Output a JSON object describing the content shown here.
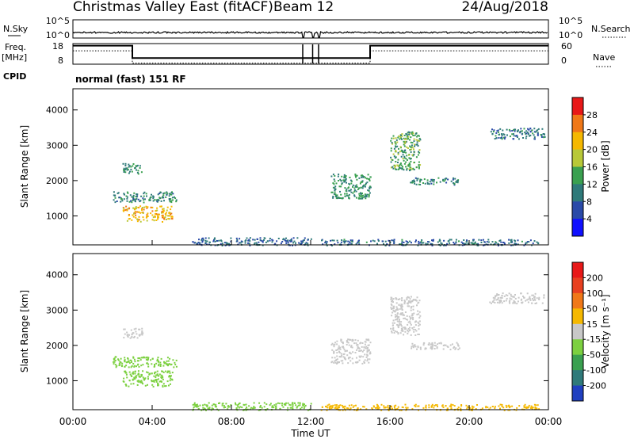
{
  "header": {
    "title": "Christmas Valley East (fitACF)",
    "beam": "Beam 12",
    "date": "24/Aug/2018"
  },
  "aux": {
    "nsky_label": "N.Sky",
    "nsky_ticks": [
      "10^5",
      "10^0"
    ],
    "nsearch_label": "N.Search",
    "nsearch_ticks": [
      "10^5",
      "10^0"
    ],
    "freq_label": "Freq.",
    "freq_unit": "[MHz]",
    "freq_ticks": [
      "18",
      "8"
    ],
    "nave_label": "Nave",
    "nave_ticks": [
      "60",
      "0"
    ],
    "cpid_label": "CPID",
    "cpid_value": "normal (fast) 151 RF"
  },
  "x_axis": {
    "label": "Time UT",
    "ticks": [
      "00:00",
      "04:00",
      "08:00",
      "12:00",
      "16:00",
      "20:00",
      "00:00"
    ]
  },
  "power_panel": {
    "ylabel": "Slant Range [km]",
    "yticks": [
      "1000",
      "2000",
      "3000",
      "4000"
    ],
    "colorbar_label": "Power [dB]",
    "colorbar_ticks": [
      "4",
      "8",
      "12",
      "16",
      "20",
      "24",
      "28"
    ],
    "colors": [
      "#1010ff",
      "#2a4aa8",
      "#2f7a7a",
      "#3aa050",
      "#b8c838",
      "#f5b800",
      "#f07818",
      "#e81818"
    ]
  },
  "velocity_panel": {
    "ylabel": "Slant Range [km]",
    "yticks": [
      "1000",
      "2000",
      "3000",
      "4000"
    ],
    "colorbar_label": "Velocity [m s⁻¹]",
    "colorbar_ticks": [
      "200",
      "100",
      "50",
      "15",
      "-15",
      "-50",
      "-100",
      "-200"
    ],
    "colors": [
      "#2040c0",
      "#2f7a7a",
      "#3aa050",
      "#7cd040",
      "#c8c8c8",
      "#f5b800",
      "#f07818",
      "#e84020",
      "#e81818"
    ]
  },
  "chart_data": {
    "type": "heatmap",
    "x_range_hours": [
      0,
      24
    ],
    "y_range_km": [
      180,
      4600
    ],
    "power_features_db": [
      {
        "t0": 2.5,
        "t1": 5.0,
        "r0": 850,
        "r1": 1300,
        "level": 22
      },
      {
        "t0": 2.0,
        "t1": 5.2,
        "r0": 1400,
        "r1": 1700,
        "level": 11
      },
      {
        "t0": 2.5,
        "t1": 3.5,
        "r0": 2200,
        "r1": 2500,
        "level": 12
      },
      {
        "t0": 6.0,
        "t1": 12.0,
        "r0": 180,
        "r1": 400,
        "level": 8
      },
      {
        "t0": 12.5,
        "t1": 23.5,
        "r0": 180,
        "r1": 350,
        "level": 9
      },
      {
        "t0": 13.0,
        "t1": 15.0,
        "r0": 1500,
        "r1": 2200,
        "level": 12
      },
      {
        "t0": 16.0,
        "t1": 17.5,
        "r0": 2300,
        "r1": 3400,
        "level": 14
      },
      {
        "t0": 17.0,
        "t1": 19.5,
        "r0": 1900,
        "r1": 2100,
        "level": 10
      },
      {
        "t0": 21.0,
        "t1": 23.8,
        "r0": 3200,
        "r1": 3500,
        "level": 9
      }
    ],
    "velocity_features_ms": [
      {
        "t0": 2.5,
        "t1": 5.0,
        "r0": 850,
        "r1": 1300,
        "value": 30
      },
      {
        "t0": 2.0,
        "t1": 5.2,
        "r0": 1400,
        "r1": 1700,
        "value": 40
      },
      {
        "t0": 2.5,
        "t1": 3.5,
        "r0": 2200,
        "r1": 2500,
        "value": 0
      },
      {
        "t0": 6.0,
        "t1": 12.0,
        "r0": 180,
        "r1": 400,
        "value": 30
      },
      {
        "t0": 12.5,
        "t1": 23.5,
        "r0": 180,
        "r1": 350,
        "value": -30
      },
      {
        "t0": 13.0,
        "t1": 15.0,
        "r0": 1500,
        "r1": 2200,
        "value": 0
      },
      {
        "t0": 16.0,
        "t1": 17.5,
        "r0": 2300,
        "r1": 3400,
        "value": 0
      },
      {
        "t0": 17.0,
        "t1": 19.5,
        "r0": 1900,
        "r1": 2100,
        "value": 0
      },
      {
        "t0": 21.0,
        "t1": 23.8,
        "r0": 3200,
        "r1": 3500,
        "value": 0
      }
    ],
    "frequency_mhz": [
      {
        "t0": 0,
        "t1": 3.0,
        "value": 17
      },
      {
        "t0": 3.0,
        "t1": 15.0,
        "value": 11
      },
      {
        "t0": 15.0,
        "t1": 24,
        "value": 17
      }
    ],
    "data_gaps_hours": [
      [
        11.6,
        11.7
      ],
      [
        12.1,
        12.2
      ],
      [
        12.4,
        12.5
      ]
    ]
  }
}
